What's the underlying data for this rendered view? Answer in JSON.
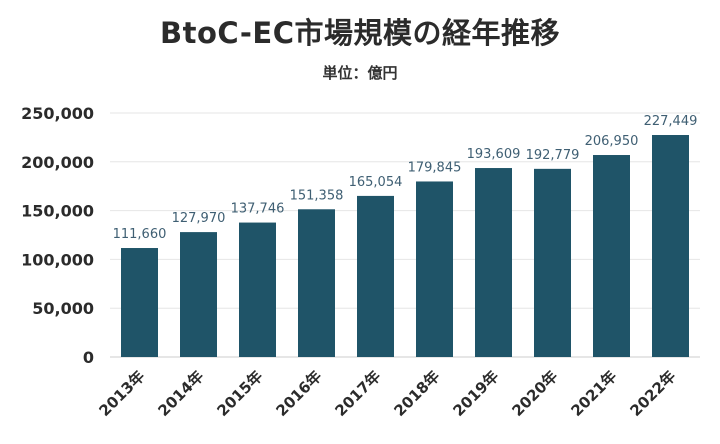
{
  "chart_data": {
    "type": "bar",
    "title": "BtoC-EC市場規模の経年推移",
    "subtitle": "単位：億円",
    "xlabel": "",
    "ylabel": "",
    "categories": [
      "2013年",
      "2014年",
      "2015年",
      "2016年",
      "2017年",
      "2018年",
      "2019年",
      "2020年",
      "2021年",
      "2022年"
    ],
    "values": [
      111660,
      127970,
      137746,
      151358,
      165054,
      179845,
      193609,
      192779,
      206950,
      227449
    ],
    "value_labels": [
      "111,660",
      "127,970",
      "137,746",
      "151,358",
      "165,054",
      "179,845",
      "193,609",
      "192,779",
      "206,950",
      "227,449"
    ],
    "ylim": [
      0,
      250000
    ],
    "yticks": [
      0,
      50000,
      100000,
      150000,
      200000,
      250000
    ],
    "ytick_labels": [
      "0",
      "50,000",
      "100,000",
      "150,000",
      "200,000",
      "250,000"
    ],
    "grid": true,
    "bar_color": "#1f5468",
    "label_color": "#3f5f73"
  }
}
